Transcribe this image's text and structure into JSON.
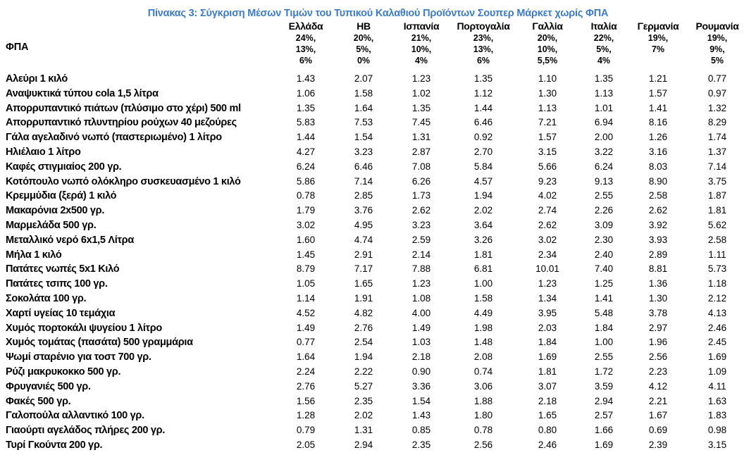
{
  "styles": {
    "title_color": "#3B7BC7",
    "text_color": "#000000",
    "background_color": "#FFFFFF"
  },
  "chart_data": {
    "type": "table",
    "title": "Πίνακας 3: Σύγκριση Μέσων Τιμών του Τυπικού Καλαθιού Προϊόντων Σουπερ Μάρκετ χωρίς ΦΠΑ",
    "vat_row_label": "ΦΠΑ",
    "columns": [
      {
        "name": "Ελλάδα",
        "vat": [
          "24%,",
          "13%,",
          "6%"
        ]
      },
      {
        "name": "ΗΒ",
        "vat": [
          "20%,",
          "5%,",
          "0%"
        ]
      },
      {
        "name": "Ισπανία",
        "vat": [
          "21%,",
          "10%,",
          "4%"
        ]
      },
      {
        "name": "Πορτογαλία",
        "vat": [
          "23%,",
          "13%,",
          "6%"
        ]
      },
      {
        "name": "Γαλλία",
        "vat": [
          "20%,",
          "10%,",
          "5,5%"
        ]
      },
      {
        "name": "Ιταλία",
        "vat": [
          "22%,",
          "5%,",
          "4%"
        ]
      },
      {
        "name": "Γερμανία",
        "vat": [
          "19%,",
          "7%"
        ]
      },
      {
        "name": "Ρουμανία",
        "vat": [
          "19%,",
          "9%,",
          "5%"
        ]
      }
    ],
    "rows": [
      {
        "product": "Αλεύρι 1 κιλό",
        "values": [
          "1.43",
          "2.07",
          "1.23",
          "1.35",
          "1.10",
          "1.35",
          "1.21",
          "0.77"
        ]
      },
      {
        "product": "Αναψυκτικά τύπου cola 1,5 λίτρα",
        "values": [
          "1.06",
          "1.58",
          "1.02",
          "1.12",
          "1.30",
          "1.13",
          "1.57",
          "0.97"
        ]
      },
      {
        "product": "Απορρυπαντικό πιάτων (πλύσιμο στο χέρι) 500 ml",
        "values": [
          "1.35",
          "1.64",
          "1.35",
          "1.44",
          "1.13",
          "1.01",
          "1.41",
          "1.32"
        ]
      },
      {
        "product": "Απορρυπαντικό πλυντηρίου ρούχων 40 μεζούρες",
        "values": [
          "5.83",
          "7.53",
          "7.45",
          "6.46",
          "7.21",
          "6.94",
          "8.16",
          "8.29"
        ]
      },
      {
        "product": "Γάλα αγελαδινό νωπό (παστεριωμένο) 1 λίτρο",
        "values": [
          "1.44",
          "1.54",
          "1.31",
          "0.92",
          "1.57",
          "2.00",
          "1.26",
          "1.74"
        ]
      },
      {
        "product": "Ηλιέλαιο 1 λίτρο",
        "values": [
          "4.27",
          "3.23",
          "2.87",
          "2.70",
          "3.15",
          "3.22",
          "3.16",
          "1.37"
        ]
      },
      {
        "product": "Καφές στιγμιαίος 200 γρ.",
        "values": [
          "6.24",
          "6.46",
          "7.08",
          "5.84",
          "5.66",
          "6.24",
          "8.03",
          "7.14"
        ]
      },
      {
        "product": "Κοτόπουλο νωπό ολόκληρο συσκευασμένο 1 κιλό",
        "values": [
          "5.86",
          "7.14",
          "6.26",
          "4.57",
          "9.23",
          "9.13",
          "8.90",
          "3.75"
        ]
      },
      {
        "product": "Κρεμμύδια (ξερά) 1 κιλό",
        "values": [
          "0.78",
          "2.85",
          "1.73",
          "1.94",
          "4.02",
          "2.55",
          "2.58",
          "1.87"
        ]
      },
      {
        "product": "Μακαρόνια 2x500 γρ.",
        "values": [
          "1.79",
          "3.76",
          "2.62",
          "2.02",
          "2.74",
          "2.26",
          "2.62",
          "1.81"
        ]
      },
      {
        "product": "Μαρμελάδα 500 γρ.",
        "values": [
          "3.02",
          "4.95",
          "3.23",
          "3.64",
          "2.62",
          "3.09",
          "3.92",
          "5.62"
        ]
      },
      {
        "product": "Μεταλλικό νερό 6x1,5 Λίτρα",
        "values": [
          "1.60",
          "4.74",
          "2.59",
          "3.26",
          "3.02",
          "2.30",
          "3.93",
          "2.58"
        ]
      },
      {
        "product": "Μήλα 1 κιλό",
        "values": [
          "1.45",
          "2.91",
          "2.14",
          "1.81",
          "2.34",
          "2.40",
          "2.89",
          "1.11"
        ]
      },
      {
        "product": "Πατάτες νωπές 5x1 Κιλό",
        "values": [
          "8.79",
          "7.17",
          "7.88",
          "6.81",
          "10.01",
          "7.40",
          "8.81",
          "5.73"
        ]
      },
      {
        "product": "Πατάτες τσιπς 100 γρ.",
        "values": [
          "1.05",
          "1.65",
          "1.23",
          "1.00",
          "1.23",
          "1.25",
          "1.36",
          "1.18"
        ]
      },
      {
        "product": "Σοκολάτα 100 γρ.",
        "values": [
          "1.14",
          "1.91",
          "1.08",
          "1.58",
          "1.34",
          "1.41",
          "1.30",
          "2.12"
        ]
      },
      {
        "product": "Χαρτί υγείας 10 τεμάχια",
        "values": [
          "4.52",
          "4.82",
          "4.00",
          "4.49",
          "3.95",
          "5.48",
          "3.78",
          "4.13"
        ]
      },
      {
        "product": "Χυμός πορτοκάλι ψυγείου 1 λίτρο",
        "values": [
          "1.49",
          "2.76",
          "1.49",
          "1.98",
          "2.03",
          "1.84",
          "2.97",
          "2.46"
        ]
      },
      {
        "product": "Χυμός τομάτας (πασάτα) 500 γραμμάρια",
        "values": [
          "0.77",
          "2.54",
          "1.03",
          "1.48",
          "1.84",
          "1.00",
          "1.96",
          "2.45"
        ]
      },
      {
        "product": "Ψωμί σταρένιο για τοστ 700 γρ.",
        "values": [
          "1.64",
          "1.94",
          "2.18",
          "2.08",
          "1.69",
          "2.55",
          "2.56",
          "1.69"
        ]
      },
      {
        "product": "Ρύζι μακρυκοκκο 500 γρ.",
        "values": [
          "2.24",
          "2.22",
          "0.90",
          "0.74",
          "1.81",
          "1.72",
          "2.23",
          "1.09"
        ]
      },
      {
        "product": "Φρυγανιές 500 γρ.",
        "values": [
          "2.76",
          "5.27",
          "3.36",
          "3.06",
          "3.07",
          "3.59",
          "4.12",
          "4.11"
        ]
      },
      {
        "product": "Φακές 500 γρ.",
        "values": [
          "1.56",
          "2.35",
          "1.54",
          "1.88",
          "2.18",
          "2.94",
          "2.21",
          "1.63"
        ]
      },
      {
        "product": "Γαλοπούλα αλλαντικό 100 γρ.",
        "values": [
          "1.28",
          "2.02",
          "1.43",
          "1.80",
          "1.65",
          "2.57",
          "1.67",
          "1.83"
        ]
      },
      {
        "product": "Γιαούρτι αγελάδος πλήρες 200 γρ.",
        "values": [
          "0.79",
          "1.31",
          "0.85",
          "0.78",
          "0.80",
          "1.66",
          "0.69",
          "0.98"
        ]
      },
      {
        "product": "Τυρί Γκούντα 200 γρ.",
        "values": [
          "2.05",
          "2.94",
          "2.35",
          "2.56",
          "2.46",
          "1.69",
          "2.39",
          "3.15"
        ]
      }
    ]
  }
}
